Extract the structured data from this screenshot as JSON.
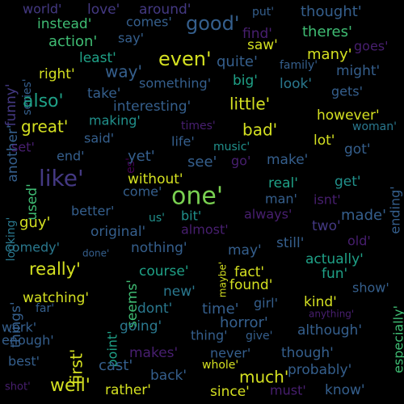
{
  "palette": {
    "background": "#000000",
    "yellow": "#d4e021",
    "lightgreen": "#7ad151",
    "green": "#3fbc73",
    "teal": "#1fa187",
    "cyan": "#21918c",
    "blue": "#2a788e",
    "indigo": "#355f8d",
    "purple": "#443983",
    "darkpurple": "#481f70",
    "deep": "#440154"
  },
  "words": [
    {
      "text": "world'",
      "color": "purple"
    },
    {
      "text": "love'",
      "color": "purple"
    },
    {
      "text": "around'",
      "color": "purple"
    },
    {
      "text": "put'",
      "color": "indigo"
    },
    {
      "text": "thought'",
      "color": "indigo"
    },
    {
      "text": "instead'",
      "color": "green"
    },
    {
      "text": "comes'",
      "color": "indigo"
    },
    {
      "text": "good'",
      "color": "indigo"
    },
    {
      "text": "find'",
      "color": "darkpurple"
    },
    {
      "text": "theres'",
      "color": "green"
    },
    {
      "text": "funny'",
      "color": "purple"
    },
    {
      "text": "action'",
      "color": "green"
    },
    {
      "text": "say'",
      "color": "indigo"
    },
    {
      "text": "saw'",
      "color": "yellow"
    },
    {
      "text": "goes'",
      "color": "darkpurple"
    },
    {
      "text": "series'",
      "color": "indigo"
    },
    {
      "text": "least'",
      "color": "teal"
    },
    {
      "text": "even'",
      "color": "yellow"
    },
    {
      "text": "quite'",
      "color": "indigo"
    },
    {
      "text": "many'",
      "color": "yellow"
    },
    {
      "text": "family'",
      "color": "indigo"
    },
    {
      "text": "right'",
      "color": "yellow"
    },
    {
      "text": "way'",
      "color": "indigo"
    },
    {
      "text": "something'",
      "color": "indigo"
    },
    {
      "text": "big'",
      "color": "teal"
    },
    {
      "text": "look'",
      "color": "blue"
    },
    {
      "text": "might'",
      "color": "indigo"
    },
    {
      "text": "another'",
      "color": "indigo"
    },
    {
      "text": "take'",
      "color": "indigo"
    },
    {
      "text": "gets'",
      "color": "indigo"
    },
    {
      "text": "also'",
      "color": "teal"
    },
    {
      "text": "interesting'",
      "color": "indigo"
    },
    {
      "text": "little'",
      "color": "yellow"
    },
    {
      "text": "however'",
      "color": "yellow"
    },
    {
      "text": "great'",
      "color": "yellow"
    },
    {
      "text": "making'",
      "color": "cyan"
    },
    {
      "text": "times'",
      "color": "darkpurple"
    },
    {
      "text": "bad'",
      "color": "yellow"
    },
    {
      "text": "woman'",
      "color": "blue"
    },
    {
      "text": "said'",
      "color": "indigo"
    },
    {
      "text": "life'",
      "color": "indigo"
    },
    {
      "text": "music'",
      "color": "cyan"
    },
    {
      "text": "lot'",
      "color": "yellow"
    },
    {
      "text": "got'",
      "color": "indigo"
    },
    {
      "text": "set'",
      "color": "darkpurple"
    },
    {
      "text": "es'",
      "color": "deep"
    },
    {
      "text": "end'",
      "color": "indigo"
    },
    {
      "text": "yet'",
      "color": "indigo"
    },
    {
      "text": "see'",
      "color": "indigo"
    },
    {
      "text": "go'",
      "color": "darkpurple"
    },
    {
      "text": "make'",
      "color": "indigo"
    },
    {
      "text": "like'",
      "color": "purple"
    },
    {
      "text": "without'",
      "color": "yellow"
    },
    {
      "text": "real'",
      "color": "teal"
    },
    {
      "text": "get'",
      "color": "cyan"
    },
    {
      "text": "ending'",
      "color": "indigo"
    },
    {
      "text": "used'",
      "color": "green"
    },
    {
      "text": "come'",
      "color": "indigo"
    },
    {
      "text": "one'",
      "color": "lightgreen"
    },
    {
      "text": "man'",
      "color": "indigo"
    },
    {
      "text": "isnt'",
      "color": "darkpurple"
    },
    {
      "text": "looking'",
      "color": "blue"
    },
    {
      "text": "guy'",
      "color": "yellow"
    },
    {
      "text": "better'",
      "color": "indigo"
    },
    {
      "text": "us'",
      "color": "cyan"
    },
    {
      "text": "bit'",
      "color": "cyan"
    },
    {
      "text": "always'",
      "color": "darkpurple"
    },
    {
      "text": "made'",
      "color": "indigo"
    },
    {
      "text": "two'",
      "color": "purple"
    },
    {
      "text": "original'",
      "color": "indigo"
    },
    {
      "text": "almost'",
      "color": "darkpurple"
    },
    {
      "text": "comedy'",
      "color": "blue"
    },
    {
      "text": "nothing'",
      "color": "indigo"
    },
    {
      "text": "still'",
      "color": "indigo"
    },
    {
      "text": "old'",
      "color": "darkpurple"
    },
    {
      "text": "may'",
      "color": "indigo"
    },
    {
      "text": "done'",
      "color": "indigo"
    },
    {
      "text": "really'",
      "color": "yellow"
    },
    {
      "text": "course'",
      "color": "teal"
    },
    {
      "text": "maybe'",
      "color": "yellow"
    },
    {
      "text": "fact'",
      "color": "yellow"
    },
    {
      "text": "actually'",
      "color": "teal"
    },
    {
      "text": "seems'",
      "color": "green"
    },
    {
      "text": "fun'",
      "color": "teal"
    },
    {
      "text": "things'",
      "color": "indigo"
    },
    {
      "text": "new'",
      "color": "blue"
    },
    {
      "text": "found'",
      "color": "yellow"
    },
    {
      "text": "show'",
      "color": "indigo"
    },
    {
      "text": "watching'",
      "color": "yellow"
    },
    {
      "text": "dont'",
      "color": "blue"
    },
    {
      "text": "time'",
      "color": "indigo"
    },
    {
      "text": "girl'",
      "color": "indigo"
    },
    {
      "text": "kind'",
      "color": "yellow"
    },
    {
      "text": "anything'",
      "color": "darkpurple"
    },
    {
      "text": "far'",
      "color": "indigo"
    },
    {
      "text": "point'",
      "color": "teal"
    },
    {
      "text": "horror'",
      "color": "indigo"
    },
    {
      "text": "especially'",
      "color": "green"
    },
    {
      "text": "work'",
      "color": "indigo"
    },
    {
      "text": "going'",
      "color": "blue"
    },
    {
      "text": "thing'",
      "color": "indigo"
    },
    {
      "text": "give'",
      "color": "indigo"
    },
    {
      "text": "although'",
      "color": "indigo"
    },
    {
      "text": "enough'",
      "color": "indigo"
    },
    {
      "text": "first'",
      "color": "yellow"
    },
    {
      "text": "makes'",
      "color": "darkpurple"
    },
    {
      "text": "never'",
      "color": "indigo"
    },
    {
      "text": "though'",
      "color": "indigo"
    },
    {
      "text": "best'",
      "color": "indigo"
    },
    {
      "text": "cast'",
      "color": "indigo"
    },
    {
      "text": "whole'",
      "color": "yellow"
    },
    {
      "text": "much'",
      "color": "yellow"
    },
    {
      "text": "probably'",
      "color": "indigo"
    },
    {
      "text": "well'",
      "color": "yellow"
    },
    {
      "text": "back'",
      "color": "indigo"
    },
    {
      "text": "shot'",
      "color": "darkpurple"
    },
    {
      "text": "rather'",
      "color": "yellow"
    },
    {
      "text": "since'",
      "color": "yellow"
    },
    {
      "text": "must'",
      "color": "darkpurple"
    },
    {
      "text": "know'",
      "color": "indigo"
    }
  ]
}
